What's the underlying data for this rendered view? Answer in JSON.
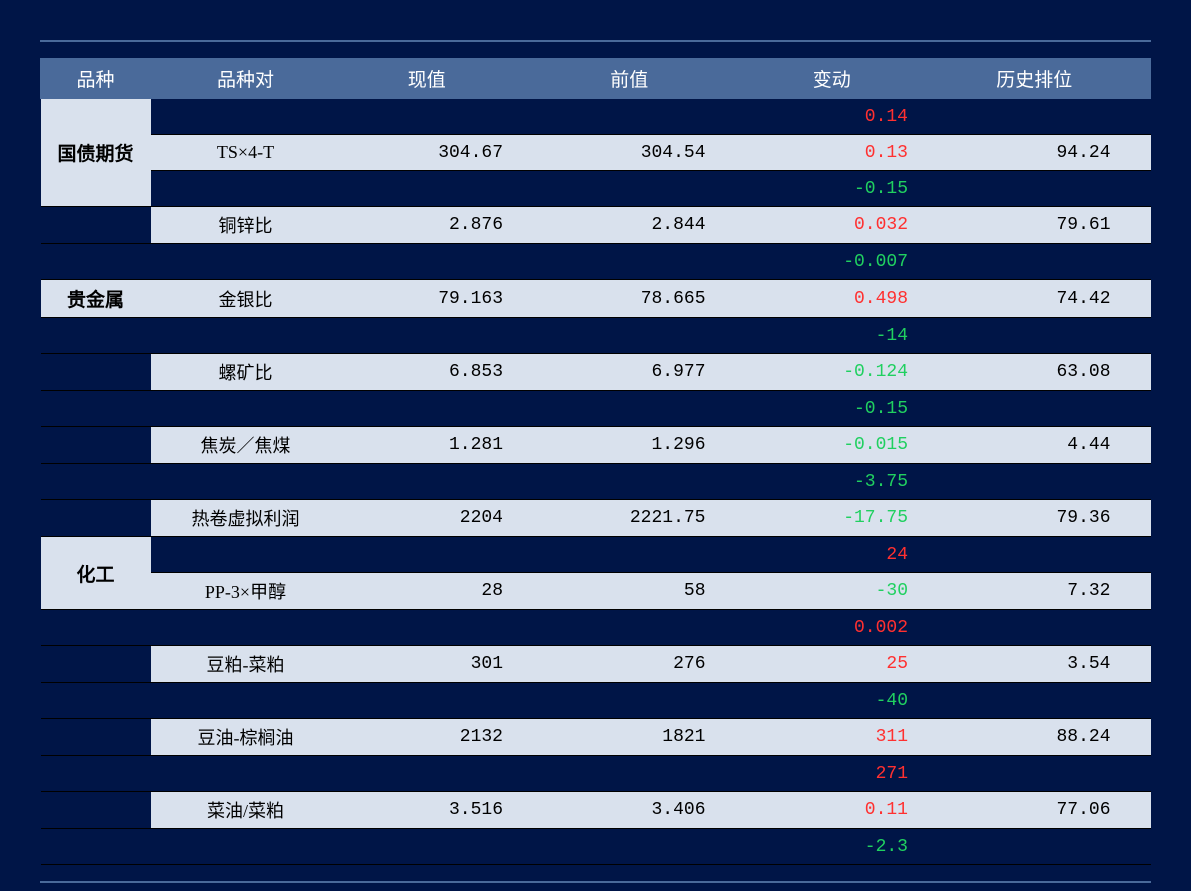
{
  "table": {
    "columns": [
      "品种",
      "品种对",
      "现值",
      "前值",
      "变动",
      "历史排位"
    ],
    "colors": {
      "header_bg": "#4a6a9a",
      "header_fg": "#ffffff",
      "row_light_bg": "#d9e1ed",
      "row_dark_bg": "#001547",
      "positive": "#ff3030",
      "negative": "#20d060",
      "border": "#000000",
      "wrapper_border": "#4a6a9a"
    },
    "categories": [
      {
        "name": "国债期货"
      },
      {
        "name": "贵金属"
      },
      {
        "name": "化工"
      }
    ],
    "rows": [
      {
        "type": "dark",
        "change": "0.14",
        "dir": "pos"
      },
      {
        "type": "light",
        "category": "国债期货",
        "pair": "TS×4-T",
        "current": "304.67",
        "prev": "304.54",
        "change": "0.13",
        "dir": "pos",
        "rank": "94.24"
      },
      {
        "type": "dark",
        "change": "-0.15",
        "dir": "neg"
      },
      {
        "type": "light",
        "pair": "铜锌比",
        "current": "2.876",
        "prev": "2.844",
        "change": "0.032",
        "dir": "pos",
        "rank": "79.61"
      },
      {
        "type": "dark",
        "change": "-0.007",
        "dir": "neg"
      },
      {
        "type": "light",
        "category": "贵金属",
        "pair": "金银比",
        "current": "79.163",
        "prev": "78.665",
        "change": "0.498",
        "dir": "pos",
        "rank": "74.42"
      },
      {
        "type": "dark",
        "change": "-14",
        "dir": "neg"
      },
      {
        "type": "light",
        "pair": "螺矿比",
        "current": "6.853",
        "prev": "6.977",
        "change": "-0.124",
        "dir": "neg",
        "rank": "63.08"
      },
      {
        "type": "dark",
        "change": "-0.15",
        "dir": "neg"
      },
      {
        "type": "light",
        "pair": "焦炭／焦煤",
        "current": "1.281",
        "prev": "1.296",
        "change": "-0.015",
        "dir": "neg",
        "rank": "4.44"
      },
      {
        "type": "dark",
        "change": "-3.75",
        "dir": "neg"
      },
      {
        "type": "light",
        "pair": "热卷虚拟利润",
        "current": "2204",
        "prev": "2221.75",
        "change": "-17.75",
        "dir": "neg",
        "rank": "79.36"
      },
      {
        "type": "dark",
        "change": "24",
        "dir": "pos",
        "category": "化工",
        "cat_rowspan": 2
      },
      {
        "type": "light",
        "pair": "PP-3×甲醇",
        "current": "28",
        "prev": "58",
        "change": "-30",
        "dir": "neg",
        "rank": "7.32"
      },
      {
        "type": "dark",
        "change": "0.002",
        "dir": "pos"
      },
      {
        "type": "light",
        "pair": "豆粕-菜粕",
        "current": "301",
        "prev": "276",
        "change": "25",
        "dir": "pos",
        "rank": "3.54"
      },
      {
        "type": "dark",
        "change": "-40",
        "dir": "neg"
      },
      {
        "type": "light",
        "pair": "豆油-棕榈油",
        "current": "2132",
        "prev": "1821",
        "change": "311",
        "dir": "pos",
        "rank": "88.24"
      },
      {
        "type": "dark",
        "change": "271",
        "dir": "pos"
      },
      {
        "type": "light",
        "pair": "菜油/菜粕",
        "current": "3.516",
        "prev": "3.406",
        "change": "0.11",
        "dir": "pos",
        "rank": "77.06"
      },
      {
        "type": "dark",
        "change": "-2.3",
        "dir": "neg"
      }
    ]
  }
}
